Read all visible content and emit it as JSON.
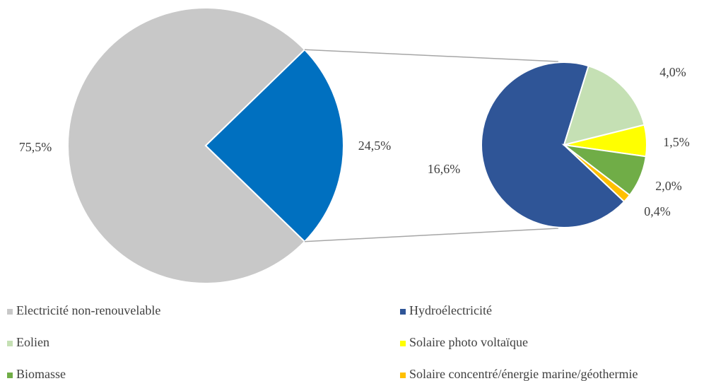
{
  "chart_data": {
    "type": "pie-of-pie",
    "categories": [
      "Electricité non-renouvelable",
      "Hydroélectricité",
      "Eolien",
      "Solaire photo voltaïque",
      "Biomasse",
      "Solaire concentré/énergie marine/géothermie"
    ],
    "values": [
      75.5,
      16.6,
      4.0,
      1.5,
      2.0,
      0.4
    ],
    "value_labels": [
      "75,5%",
      "16,6%",
      "4,0%",
      "1,5%",
      "2,0%",
      "0,4%"
    ],
    "colors": [
      "#c8c8c8",
      "#2f5597",
      "#c5e0b4",
      "#ffff00",
      "#70ad47",
      "#ffc000"
    ],
    "other_value": 24.5,
    "other_value_label": "24,5%",
    "other_color": "#0070c0"
  }
}
